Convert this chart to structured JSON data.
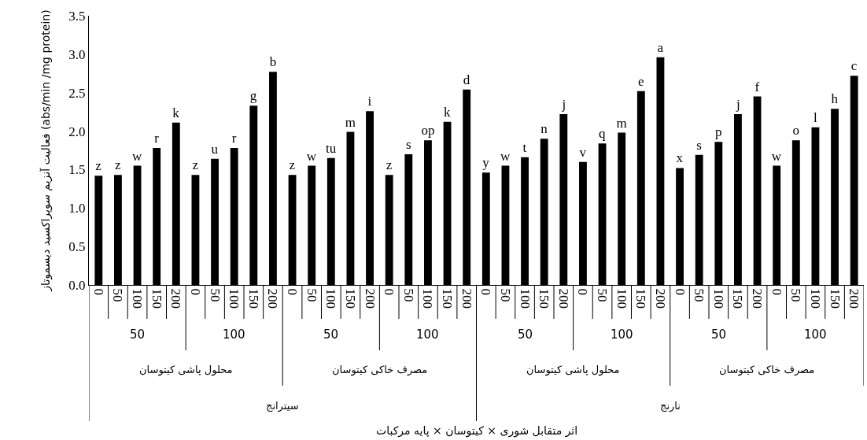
{
  "chart_data": {
    "type": "bar",
    "ylabel": "فعالیت آنزیم سوپراکسید دیسموتاز (abs/min /mg protein)",
    "categories": [
      "0",
      "50",
      "100",
      "150",
      "200",
      "0",
      "50",
      "100",
      "150",
      "200",
      "0",
      "50",
      "100",
      "150",
      "200",
      "0",
      "50",
      "100",
      "150",
      "200",
      "0",
      "50",
      "100",
      "150",
      "200",
      "0",
      "50",
      "100",
      "150",
      "200",
      "0",
      "50",
      "100",
      "150",
      "200",
      "0",
      "50",
      "100",
      "150",
      "200"
    ],
    "values": [
      1.42,
      1.43,
      1.55,
      1.78,
      2.11,
      1.43,
      1.64,
      1.78,
      2.33,
      2.77,
      1.43,
      1.55,
      1.65,
      1.99,
      2.26,
      1.43,
      1.7,
      1.88,
      2.12,
      2.54,
      1.46,
      1.55,
      1.66,
      1.9,
      2.22,
      1.6,
      1.84,
      1.98,
      2.52,
      2.96,
      1.52,
      1.69,
      1.86,
      2.22,
      2.45,
      1.55,
      1.88,
      2.05,
      2.29,
      2.72
    ],
    "value_labels": [
      "z",
      "z",
      "w",
      "r",
      "k",
      "z",
      "u",
      "r",
      "g",
      "b",
      "z",
      "w",
      "tu",
      "m",
      "i",
      "z",
      "s",
      "op",
      "k",
      "d",
      "y",
      "w",
      "t",
      "n",
      "j",
      "v",
      "q",
      "m",
      "e",
      "a",
      "x",
      "s",
      "p",
      "j",
      "f",
      "w",
      "o",
      "l",
      "h",
      "c"
    ],
    "color": "#000000",
    "ylim": [
      0,
      3.5
    ],
    "yticks": [
      {
        "value": 0,
        "label": "0.0"
      },
      {
        "value": 0.5,
        "label": "0.5"
      },
      {
        "value": 1,
        "label": "1.0"
      },
      {
        "value": 1.5,
        "label": "1.5"
      },
      {
        "value": 2,
        "label": "2.0"
      },
      {
        "value": 2.5,
        "label": "2.5"
      },
      {
        "value": 3,
        "label": "3.0"
      },
      {
        "value": 3.5,
        "label": "3.5"
      }
    ],
    "grid": false,
    "annotations": [
      "50",
      "100",
      "50",
      "100",
      "50",
      "100",
      "50",
      "100",
      "محلول پاشی کیتوسان",
      "مصرف خاکی کیتوسان",
      "محلول پاشی کیتوسان",
      "مصرف خاکی کیتوسان",
      "سیترانج",
      "نارنج",
      "اثر متقابل شوری × کیتوسان × پایه مرکبات"
    ]
  }
}
